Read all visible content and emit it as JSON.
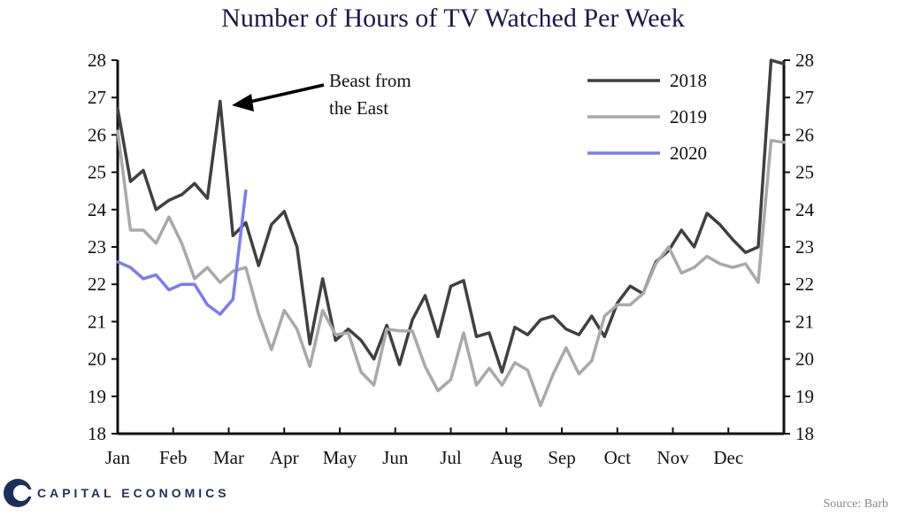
{
  "colors": {
    "title": "#1a1a4e",
    "brand": "#1c2f5c"
  },
  "chart_data": {
    "type": "line",
    "title": "Number of Hours of TV Watched Per Week",
    "xlabel": "",
    "ylabel": "",
    "ylim": [
      18,
      28
    ],
    "yticks": [
      18,
      19,
      20,
      21,
      22,
      23,
      24,
      25,
      26,
      27,
      28
    ],
    "xlim": [
      0,
      52
    ],
    "month_labels": [
      "Jan",
      "Feb",
      "Mar",
      "Apr",
      "May",
      "Jun",
      "Jul",
      "Aug",
      "Sep",
      "Oct",
      "Nov",
      "Dec"
    ],
    "x_unit": "week of year",
    "legend_position": "top-right",
    "grid": false,
    "series": [
      {
        "name": "2018",
        "color": "#404040",
        "x": [
          0,
          1,
          2,
          3,
          4,
          5,
          6,
          7,
          8,
          9,
          10,
          11,
          12,
          13,
          14,
          15,
          16,
          17,
          18,
          19,
          20,
          21,
          22,
          23,
          24,
          25,
          26,
          27,
          28,
          29,
          30,
          31,
          32,
          33,
          34,
          35,
          36,
          37,
          38,
          39,
          40,
          41,
          42,
          43,
          44,
          45,
          46,
          47,
          48,
          49,
          50,
          51,
          52
        ],
        "values": [
          26.7,
          24.75,
          25.05,
          24.0,
          24.25,
          24.4,
          24.7,
          24.3,
          26.9,
          23.3,
          23.65,
          22.5,
          23.6,
          23.95,
          23.0,
          20.4,
          22.15,
          20.5,
          20.8,
          20.5,
          20.0,
          20.9,
          19.85,
          21.05,
          21.7,
          20.6,
          21.95,
          22.1,
          20.6,
          20.7,
          19.65,
          20.85,
          20.65,
          21.05,
          21.15,
          20.8,
          20.65,
          21.15,
          20.6,
          21.5,
          21.95,
          21.75,
          22.6,
          22.9,
          23.45,
          23.0,
          23.9,
          23.6,
          23.2,
          22.85,
          23.0,
          28.0,
          27.9
        ]
      },
      {
        "name": "2019",
        "color": "#a9a9a9",
        "x": [
          0,
          1,
          2,
          3,
          4,
          5,
          6,
          7,
          8,
          9,
          10,
          11,
          12,
          13,
          14,
          15,
          16,
          17,
          18,
          19,
          20,
          21,
          22,
          23,
          24,
          25,
          26,
          27,
          28,
          29,
          30,
          31,
          32,
          33,
          34,
          35,
          36,
          37,
          38,
          39,
          40,
          41,
          42,
          43,
          44,
          45,
          46,
          47,
          48,
          49,
          50,
          51,
          52
        ],
        "values": [
          26.1,
          23.45,
          23.45,
          23.1,
          23.8,
          23.1,
          22.15,
          22.45,
          22.05,
          22.35,
          22.45,
          21.2,
          20.25,
          21.3,
          20.8,
          19.8,
          21.3,
          20.65,
          20.7,
          19.65,
          19.3,
          20.8,
          20.75,
          20.75,
          19.8,
          19.15,
          19.45,
          20.7,
          19.3,
          19.75,
          19.3,
          19.9,
          19.7,
          18.75,
          19.6,
          20.3,
          19.6,
          19.95,
          21.15,
          21.45,
          21.45,
          21.75,
          22.55,
          23.0,
          22.3,
          22.45,
          22.75,
          22.55,
          22.45,
          22.55,
          22.05,
          25.85,
          25.8
        ]
      },
      {
        "name": "2020",
        "color": "#7b7bf5",
        "x": [
          0,
          1,
          2,
          3,
          4,
          5,
          6,
          7,
          8,
          9,
          10
        ],
        "values": [
          22.6,
          22.45,
          22.15,
          22.25,
          21.85,
          22.0,
          22.0,
          21.45,
          21.2,
          21.6,
          24.5
        ]
      }
    ],
    "annotation": {
      "lines": [
        "Beast from",
        "the East"
      ],
      "points_to": {
        "series": "2018",
        "x": 8,
        "y": 26.9
      }
    }
  },
  "footer": {
    "brand": "CAPITAL ECONOMICS",
    "source": "Source: Barb"
  }
}
